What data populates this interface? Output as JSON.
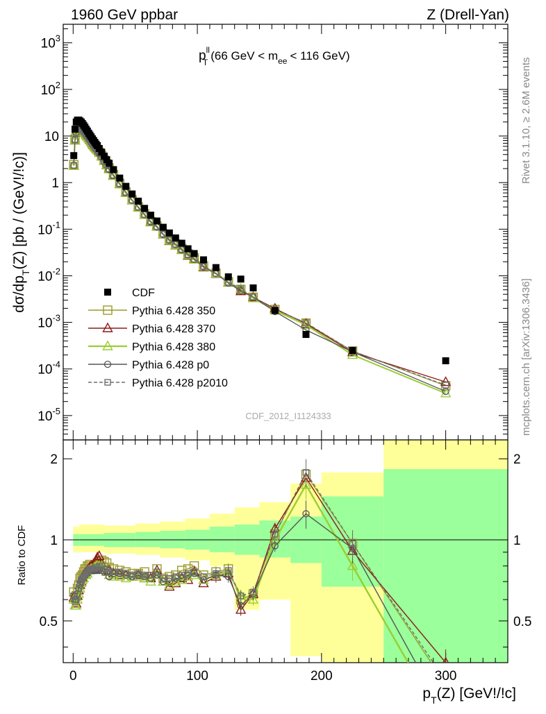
{
  "header": {
    "left": "1960 GeV ppbar",
    "right": "Z (Drell-Yan)"
  },
  "side_labels": {
    "rivet": "Rivet 3.1.10, ≥ 2.6M events",
    "mcplots": "mcplots.cern.ch [arXiv:1306.3436]"
  },
  "colors": {
    "cdf": "#000000",
    "p350": "#9a9a2a",
    "p370": "#8b1a1a",
    "p380": "#9acd32",
    "p0": "#555555",
    "p2010": "#6e6e6e",
    "band_inner": "#9bff9b",
    "band_outer": "#ffff99"
  },
  "chart_data": [
    {
      "type": "scatter",
      "title": {
        "pre": "p",
        "sup": "ll",
        "sub": "T",
        "mid": "(66 GeV < m",
        "sub2": "ee",
        "post": "< 116 GeV)"
      },
      "watermark": "CDF_2012_I1124333",
      "ylabel": {
        "pre": "dσ/dp",
        "sub": "T",
        "post": "(Z) [pb / (GeV!/!c)]"
      },
      "yscale": "log",
      "ylim": [
        3e-06,
        2500
      ],
      "xlim": [
        -8,
        350
      ],
      "ytick_labels": [
        {
          "base": "10",
          "exp": "-5"
        },
        {
          "base": "10",
          "exp": "-4"
        },
        {
          "base": "10",
          "exp": "-3"
        },
        {
          "base": "10",
          "exp": "-2"
        },
        {
          "base": "10",
          "exp": "-1"
        },
        {
          "base": "1",
          "exp": ""
        },
        {
          "base": "10",
          "exp": ""
        },
        {
          "base": "10",
          "exp": "2"
        },
        {
          "base": "10",
          "exp": "3"
        }
      ],
      "x": [
        0.5,
        1.5,
        2.5,
        3.5,
        4.5,
        5.5,
        6.5,
        7.5,
        8.5,
        9.5,
        10.5,
        11.5,
        12.5,
        13.5,
        14.5,
        15.5,
        16.5,
        17.5,
        18.5,
        19.5,
        21,
        23,
        25,
        27,
        29,
        32.5,
        37.5,
        42.5,
        47.5,
        52.5,
        57.5,
        62.5,
        67.5,
        72.5,
        77.5,
        82.5,
        87.5,
        92.5,
        97.5,
        105,
        115,
        125,
        135,
        145,
        162.5,
        187.5,
        225,
        300
      ],
      "series": [
        {
          "name": "CDF",
          "marker": "filled-square",
          "values": [
            3.8,
            14,
            20,
            22,
            22,
            21,
            20,
            18.5,
            17,
            15.5,
            14,
            12.8,
            11.5,
            10.5,
            9.6,
            8.7,
            8,
            7.3,
            6.7,
            6.2,
            5.4,
            4.5,
            3.7,
            3.1,
            2.6,
            1.9,
            1.25,
            0.83,
            0.57,
            0.4,
            0.28,
            0.2,
            0.15,
            0.11,
            0.083,
            0.065,
            0.05,
            0.038,
            0.03,
            0.022,
            0.015,
            0.0095,
            0.0085,
            0.0055,
            0.0018,
            0.00055,
            0.00025,
            0.00015
          ]
        },
        {
          "name": "Pythia 6.428 350",
          "marker": "open-square",
          "ratio": [
            0.64,
            0.61,
            0.62,
            0.66,
            0.68,
            0.72,
            0.73,
            0.74,
            0.76,
            0.78,
            0.78,
            0.8,
            0.8,
            0.81,
            0.8,
            0.79,
            0.8,
            0.8,
            0.81,
            0.82,
            0.83,
            0.84,
            0.83,
            0.82,
            0.79,
            0.78,
            0.77,
            0.76,
            0.75,
            0.75,
            0.76,
            0.73,
            0.78,
            0.72,
            0.73,
            0.74,
            0.77,
            0.78,
            0.8,
            0.74,
            0.76,
            0.78,
            0.6,
            0.63,
            1.05,
            1.75,
            0.97,
            0.29
          ]
        },
        {
          "name": "Pythia 6.428 370",
          "marker": "open-triangle",
          "ratio": [
            0.61,
            0.57,
            0.58,
            0.62,
            0.65,
            0.68,
            0.7,
            0.72,
            0.74,
            0.75,
            0.76,
            0.77,
            0.78,
            0.79,
            0.8,
            0.8,
            0.81,
            0.82,
            0.84,
            0.86,
            0.87,
            0.81,
            0.79,
            0.76,
            0.77,
            0.75,
            0.74,
            0.74,
            0.73,
            0.74,
            0.72,
            0.72,
            0.77,
            0.7,
            0.67,
            0.69,
            0.72,
            0.71,
            0.76,
            0.69,
            0.73,
            0.75,
            0.55,
            0.63,
            1.1,
            1.7,
            0.91,
            0.35
          ]
        },
        {
          "name": "Pythia 6.428 380",
          "marker": "open-triangle",
          "ratio": [
            0.6,
            0.57,
            0.57,
            0.6,
            0.63,
            0.66,
            0.69,
            0.71,
            0.72,
            0.74,
            0.74,
            0.75,
            0.77,
            0.77,
            0.78,
            0.78,
            0.78,
            0.79,
            0.8,
            0.8,
            0.8,
            0.8,
            0.79,
            0.76,
            0.74,
            0.73,
            0.73,
            0.72,
            0.73,
            0.73,
            0.72,
            0.7,
            0.75,
            0.7,
            0.68,
            0.7,
            0.71,
            0.73,
            0.74,
            0.71,
            0.74,
            0.76,
            0.62,
            0.6,
            1.0,
            1.6,
            0.8,
            0.2
          ]
        },
        {
          "name": "Pythia 6.428 p0",
          "marker": "open-circle",
          "ratio": [
            0.62,
            0.6,
            0.6,
            0.63,
            0.66,
            0.68,
            0.7,
            0.72,
            0.73,
            0.74,
            0.75,
            0.76,
            0.77,
            0.77,
            0.77,
            0.77,
            0.77,
            0.77,
            0.77,
            0.77,
            0.77,
            0.77,
            0.76,
            0.76,
            0.73,
            0.75,
            0.75,
            0.74,
            0.73,
            0.74,
            0.73,
            0.72,
            0.74,
            0.7,
            0.7,
            0.72,
            0.72,
            0.74,
            0.75,
            0.71,
            0.74,
            0.73,
            0.57,
            0.63,
            0.95,
            1.25,
            0.93,
            0.22
          ]
        },
        {
          "name": "Pythia 6.428 p2010",
          "marker": "open-square-dashed",
          "ratio": [
            0.62,
            0.59,
            0.6,
            0.63,
            0.66,
            0.69,
            0.71,
            0.72,
            0.73,
            0.74,
            0.75,
            0.76,
            0.77,
            0.78,
            0.78,
            0.78,
            0.78,
            0.79,
            0.79,
            0.79,
            0.8,
            0.8,
            0.78,
            0.78,
            0.76,
            0.76,
            0.76,
            0.75,
            0.74,
            0.75,
            0.74,
            0.74,
            0.76,
            0.72,
            0.72,
            0.73,
            0.74,
            0.75,
            0.76,
            0.73,
            0.75,
            0.77,
            0.62,
            0.64,
            1.05,
            1.78,
            0.97,
            0.3
          ]
        }
      ]
    },
    {
      "type": "line",
      "ylabel": "Ratio to CDF",
      "xlabel": {
        "pre": "p",
        "sub": "T",
        "post": "(Z) [GeV!/!c]"
      },
      "ylim": [
        0.35,
        2.35
      ],
      "xlim": [
        -8,
        350
      ],
      "yticks": [
        0.5,
        1,
        2
      ],
      "ytick_labels": [
        "0.5",
        "1",
        "2"
      ],
      "xticks": [
        0,
        100,
        200,
        300
      ],
      "xtick_labels": [
        "0",
        "100",
        "200",
        "300"
      ],
      "reference_line": 1,
      "bands": [
        {
          "x0": 0,
          "x1": 5,
          "inner": [
            0.95,
            1.05
          ],
          "outer": [
            0.9,
            1.12
          ]
        },
        {
          "x0": 5,
          "x1": 25,
          "inner": [
            0.95,
            1.05
          ],
          "outer": [
            0.9,
            1.14
          ]
        },
        {
          "x0": 25,
          "x1": 50,
          "inner": [
            0.94,
            1.06
          ],
          "outer": [
            0.89,
            1.13
          ]
        },
        {
          "x0": 50,
          "x1": 70,
          "inner": [
            0.94,
            1.07
          ],
          "outer": [
            0.88,
            1.15
          ]
        },
        {
          "x0": 70,
          "x1": 90,
          "inner": [
            0.93,
            1.08
          ],
          "outer": [
            0.86,
            1.17
          ]
        },
        {
          "x0": 90,
          "x1": 110,
          "inner": [
            0.92,
            1.09
          ],
          "outer": [
            0.84,
            1.2
          ]
        },
        {
          "x0": 110,
          "x1": 130,
          "inner": [
            0.9,
            1.12
          ],
          "outer": [
            0.8,
            1.25
          ]
        },
        {
          "x0": 130,
          "x1": 150,
          "inner": [
            0.88,
            1.14
          ],
          "outer": [
            0.55,
            1.32
          ]
        },
        {
          "x0": 150,
          "x1": 175,
          "inner": [
            0.86,
            1.18
          ],
          "outer": [
            0.6,
            1.38
          ]
        },
        {
          "x0": 175,
          "x1": 200,
          "inner": [
            0.82,
            1.22
          ],
          "outer": [
            0.37,
            1.62
          ]
        },
        {
          "x0": 200,
          "x1": 250,
          "inner": [
            0.67,
            1.45
          ],
          "outer": [
            0.35,
            1.78
          ]
        },
        {
          "x0": 250,
          "x1": 350,
          "inner": [
            0.35,
            1.83
          ],
          "outer": [
            0.35,
            2.35
          ]
        }
      ]
    }
  ]
}
